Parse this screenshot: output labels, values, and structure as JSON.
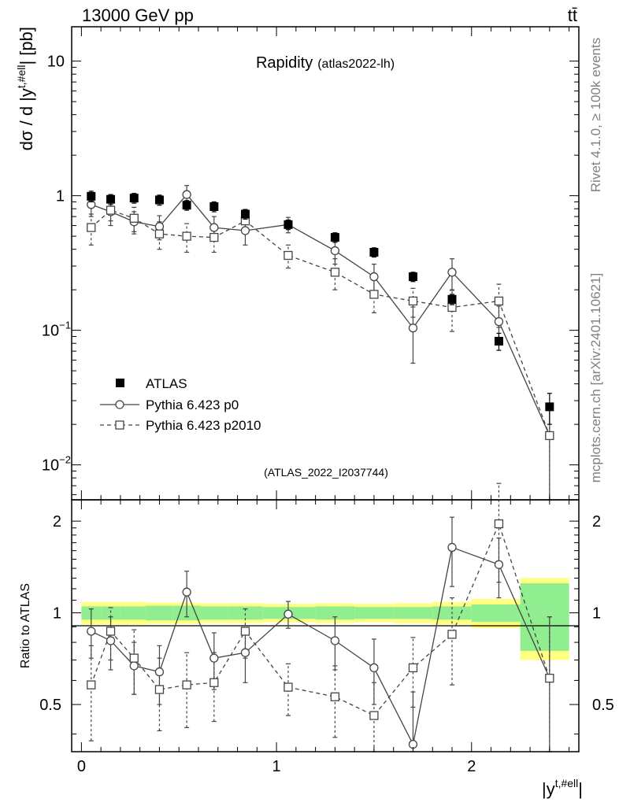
{
  "header": {
    "left": "13000 GeV pp",
    "right": "tt̄"
  },
  "side_text": {
    "rivet": "Rivet 4.1.0, ≥ 100k events",
    "source": "mcplots.cern.ch [arXiv:2401.10621]"
  },
  "chart_data": [
    {
      "type": "scatter",
      "panel": "main",
      "title": "Rapidity",
      "subtitle": "(atlas2022-lh)",
      "watermark": "(ATLAS_2022_I2037744)",
      "ylabel": "dσ / d |y^{t,#ell}| [pb]",
      "yscale": "log",
      "ylim": [
        0.0055,
        18
      ],
      "xlim": [
        -0.05,
        2.55
      ],
      "yticks": [
        {
          "value": 10,
          "base": "10",
          "exp": ""
        },
        {
          "value": 1,
          "base": "1",
          "exp": ""
        },
        {
          "value": 0.1,
          "base": "10",
          "exp": "−1"
        },
        {
          "value": 0.01,
          "base": "10",
          "exp": "−2"
        }
      ],
      "legend": [
        "ATLAS",
        "Pythia 6.423 p0",
        "Pythia 6.423 p2010"
      ],
      "x": [
        0.05,
        0.15,
        0.27,
        0.4,
        0.54,
        0.68,
        0.84,
        1.06,
        1.3,
        1.5,
        1.7,
        1.9,
        2.14,
        2.4
      ],
      "series": [
        {
          "name": "ATLAS",
          "values": [
            0.99,
            0.94,
            0.96,
            0.93,
            0.85,
            0.83,
            0.73,
            0.61,
            0.49,
            0.38,
            0.25,
            0.17,
            0.083,
            0.027
          ],
          "err_lo": [
            0.09,
            0.08,
            0.08,
            0.08,
            0.07,
            0.07,
            0.06,
            0.05,
            0.04,
            0.03,
            0.02,
            0.015,
            0.012,
            0.007
          ],
          "err_hi": [
            0.09,
            0.08,
            0.08,
            0.08,
            0.07,
            0.07,
            0.06,
            0.05,
            0.04,
            0.03,
            0.02,
            0.015,
            0.012,
            0.007
          ]
        },
        {
          "name": "Pythia 6.423 p0",
          "values": [
            0.86,
            0.76,
            0.64,
            0.59,
            1.02,
            0.58,
            0.55,
            0.61,
            0.39,
            0.25,
            0.104,
            0.27,
            0.116,
            0.0165
          ],
          "err_lo": [
            0.16,
            0.16,
            0.12,
            0.12,
            0.17,
            0.12,
            0.12,
            0.08,
            0.08,
            0.06,
            0.047,
            0.07,
            0.032,
            0.0115
          ],
          "err_hi": [
            0.16,
            0.16,
            0.12,
            0.12,
            0.17,
            0.12,
            0.12,
            0.08,
            0.08,
            0.06,
            0.045,
            0.07,
            0.035,
            0.011
          ]
        },
        {
          "name": "Pythia 6.423 p2010",
          "values": [
            0.58,
            0.78,
            0.68,
            0.52,
            0.5,
            0.49,
            0.65,
            0.36,
            0.27,
            0.185,
            0.165,
            0.148,
            0.165,
            0.0165
          ],
          "err_lo": [
            0.15,
            0.13,
            0.14,
            0.12,
            0.12,
            0.11,
            0.12,
            0.07,
            0.07,
            0.05,
            0.04,
            0.05,
            0.06,
            0.0115
          ],
          "err_hi": [
            0.15,
            0.13,
            0.14,
            0.12,
            0.12,
            0.11,
            0.12,
            0.07,
            0.07,
            0.05,
            0.04,
            0.05,
            0.055,
            0.011
          ]
        }
      ]
    },
    {
      "type": "scatter",
      "panel": "ratio",
      "ylabel": "Ratio to ATLAS",
      "xlabel": "|y^{t,#ell}|",
      "ylim": [
        0.35,
        2.35
      ],
      "xlim": [
        -0.05,
        2.55
      ],
      "yticks": [
        0.5,
        1,
        2
      ],
      "xticks": [
        0,
        1,
        2
      ],
      "bin_edges": [
        0.0,
        0.1,
        0.2,
        0.33,
        0.47,
        0.61,
        0.75,
        0.93,
        1.2,
        1.4,
        1.6,
        1.8,
        2.0,
        2.25,
        2.5
      ],
      "band_inner": [
        0.05,
        0.05,
        0.05,
        0.055,
        0.055,
        0.05,
        0.05,
        0.045,
        0.05,
        0.045,
        0.045,
        0.05,
        0.065,
        0.25
      ],
      "band_outer": [
        0.085,
        0.085,
        0.085,
        0.08,
        0.08,
        0.075,
        0.075,
        0.07,
        0.075,
        0.07,
        0.075,
        0.085,
        0.11,
        0.3
      ],
      "x": [
        0.05,
        0.15,
        0.27,
        0.4,
        0.54,
        0.68,
        0.84,
        1.06,
        1.3,
        1.5,
        1.7,
        1.9,
        2.14,
        2.4
      ],
      "series": [
        {
          "name": "Pythia 6.423 p0",
          "values": [
            0.87,
            0.81,
            0.67,
            0.64,
            1.17,
            0.71,
            0.74,
            0.99,
            0.81,
            0.66,
            0.37,
            1.64,
            1.44,
            0.61
          ],
          "err_lo": [
            0.16,
            0.16,
            0.13,
            0.14,
            0.2,
            0.15,
            0.15,
            0.1,
            0.16,
            0.16,
            0.18,
            0.42,
            0.32,
            0.36
          ],
          "err_hi": [
            0.16,
            0.16,
            0.13,
            0.14,
            0.2,
            0.15,
            0.15,
            0.1,
            0.16,
            0.16,
            0.18,
            0.42,
            0.32,
            0.36
          ]
        },
        {
          "name": "Pythia 6.423 p2010",
          "values": [
            0.58,
            0.87,
            0.71,
            0.56,
            0.58,
            0.59,
            0.87,
            0.57,
            0.53,
            0.46,
            0.66,
            0.85,
            1.96,
            0.61
          ],
          "err_lo": [
            0.2,
            0.17,
            0.17,
            0.15,
            0.16,
            0.15,
            0.16,
            0.11,
            0.14,
            0.13,
            0.17,
            0.27,
            0.7,
            0.36
          ],
          "err_hi": [
            0.2,
            0.17,
            0.17,
            0.15,
            0.16,
            0.15,
            0.16,
            0.11,
            0.14,
            0.13,
            0.17,
            0.27,
            0.7,
            0.36
          ]
        }
      ]
    }
  ]
}
